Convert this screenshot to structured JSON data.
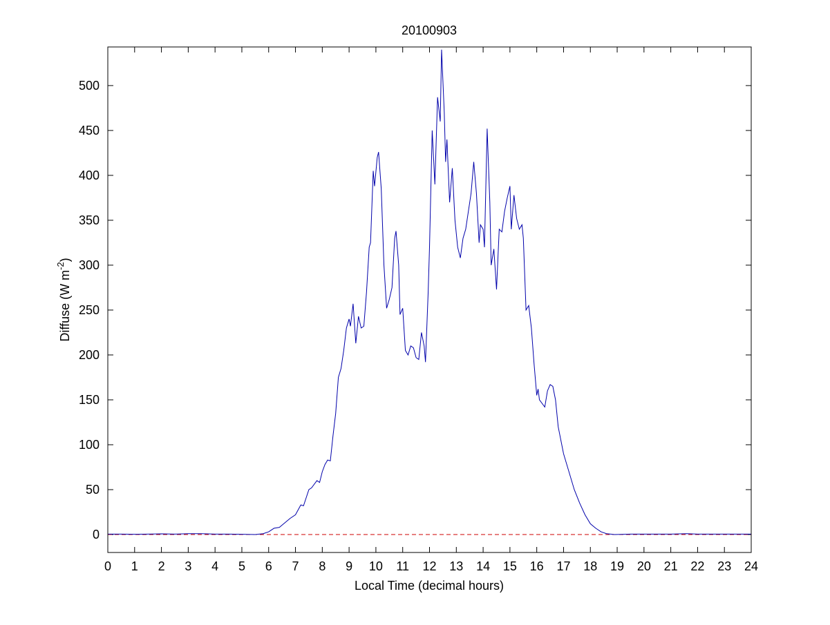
{
  "chart_data": {
    "type": "line",
    "title": "20100903",
    "x_label": "Local Time (decimal hours)",
    "y_label": {
      "text": "Diffuse (W m",
      "superscript": "-2",
      "suffix": ")"
    },
    "xlim": [
      0,
      24
    ],
    "xticks": [
      0,
      1,
      2,
      3,
      4,
      5,
      6,
      7,
      8,
      9,
      10,
      11,
      12,
      13,
      14,
      15,
      16,
      17,
      18,
      19,
      20,
      21,
      22,
      23,
      24
    ],
    "ylim": [
      -20,
      543
    ],
    "yticks": [
      0,
      50,
      100,
      150,
      200,
      250,
      300,
      350,
      400,
      450,
      500
    ],
    "grid": false,
    "reference_line": {
      "value": 0,
      "color": "#cc0000",
      "style": "dashed"
    },
    "series": [
      {
        "color": "#0000aa",
        "x": [
          0,
          0.5,
          1,
          1.5,
          2,
          2.5,
          3,
          3.5,
          4,
          4.5,
          5,
          5.5,
          5.8,
          6.0,
          6.2,
          6.4,
          6.6,
          6.8,
          7.0,
          7.2,
          7.3,
          7.5,
          7.6,
          7.8,
          7.9,
          8.0,
          8.1,
          8.2,
          8.3,
          8.4,
          8.5,
          8.6,
          8.7,
          8.8,
          8.9,
          9.0,
          9.05,
          9.15,
          9.25,
          9.35,
          9.45,
          9.55,
          9.65,
          9.75,
          9.8,
          9.9,
          9.95,
          10.05,
          10.1,
          10.2,
          10.3,
          10.4,
          10.5,
          10.6,
          10.7,
          10.75,
          10.85,
          10.9,
          11.0,
          11.1,
          11.2,
          11.3,
          11.4,
          11.5,
          11.6,
          11.7,
          11.8,
          11.85,
          11.95,
          12.0,
          12.1,
          12.2,
          12.3,
          12.4,
          12.45,
          12.55,
          12.6,
          12.65,
          12.75,
          12.85,
          12.95,
          13.05,
          13.15,
          13.25,
          13.35,
          13.45,
          13.55,
          13.65,
          13.75,
          13.85,
          13.9,
          14.0,
          14.05,
          14.15,
          14.25,
          14.3,
          14.4,
          14.5,
          14.6,
          14.7,
          14.8,
          14.9,
          15.0,
          15.05,
          15.15,
          15.25,
          15.35,
          15.45,
          15.5,
          15.6,
          15.7,
          15.8,
          15.9,
          16.0,
          16.05,
          16.1,
          16.3,
          16.4,
          16.5,
          16.6,
          16.7,
          16.8,
          16.9,
          17.0,
          17.2,
          17.4,
          17.6,
          17.8,
          18.0,
          18.2,
          18.4,
          18.6,
          18.9,
          19.5,
          20,
          21,
          21.6,
          22,
          23,
          24
        ],
        "values": [
          0.5,
          0.5,
          0.3,
          0.5,
          0.8,
          0.5,
          1,
          1,
          0.5,
          0.5,
          0.3,
          0,
          1,
          3,
          7,
          8,
          13,
          18,
          22,
          33,
          32,
          50,
          52,
          60,
          58,
          70,
          78,
          83,
          82,
          110,
          135,
          175,
          185,
          205,
          230,
          240,
          232,
          257,
          213,
          243,
          230,
          232,
          270,
          320,
          325,
          405,
          388,
          420,
          426,
          385,
          300,
          252,
          262,
          275,
          330,
          338,
          300,
          245,
          252,
          205,
          200,
          210,
          208,
          197,
          195,
          225,
          210,
          192,
          270,
          320,
          450,
          390,
          487,
          460,
          540,
          470,
          415,
          440,
          370,
          408,
          350,
          320,
          308,
          330,
          340,
          360,
          380,
          415,
          380,
          325,
          345,
          340,
          320,
          452,
          370,
          300,
          318,
          273,
          340,
          337,
          360,
          375,
          388,
          340,
          378,
          352,
          340,
          345,
          330,
          250,
          255,
          230,
          190,
          155,
          162,
          150,
          142,
          160,
          167,
          165,
          150,
          120,
          105,
          90,
          70,
          50,
          35,
          22,
          12,
          7,
          3,
          1,
          0,
          0.5,
          0.5,
          0.5,
          1,
          0.5,
          0.5,
          0.5
        ]
      }
    ]
  }
}
